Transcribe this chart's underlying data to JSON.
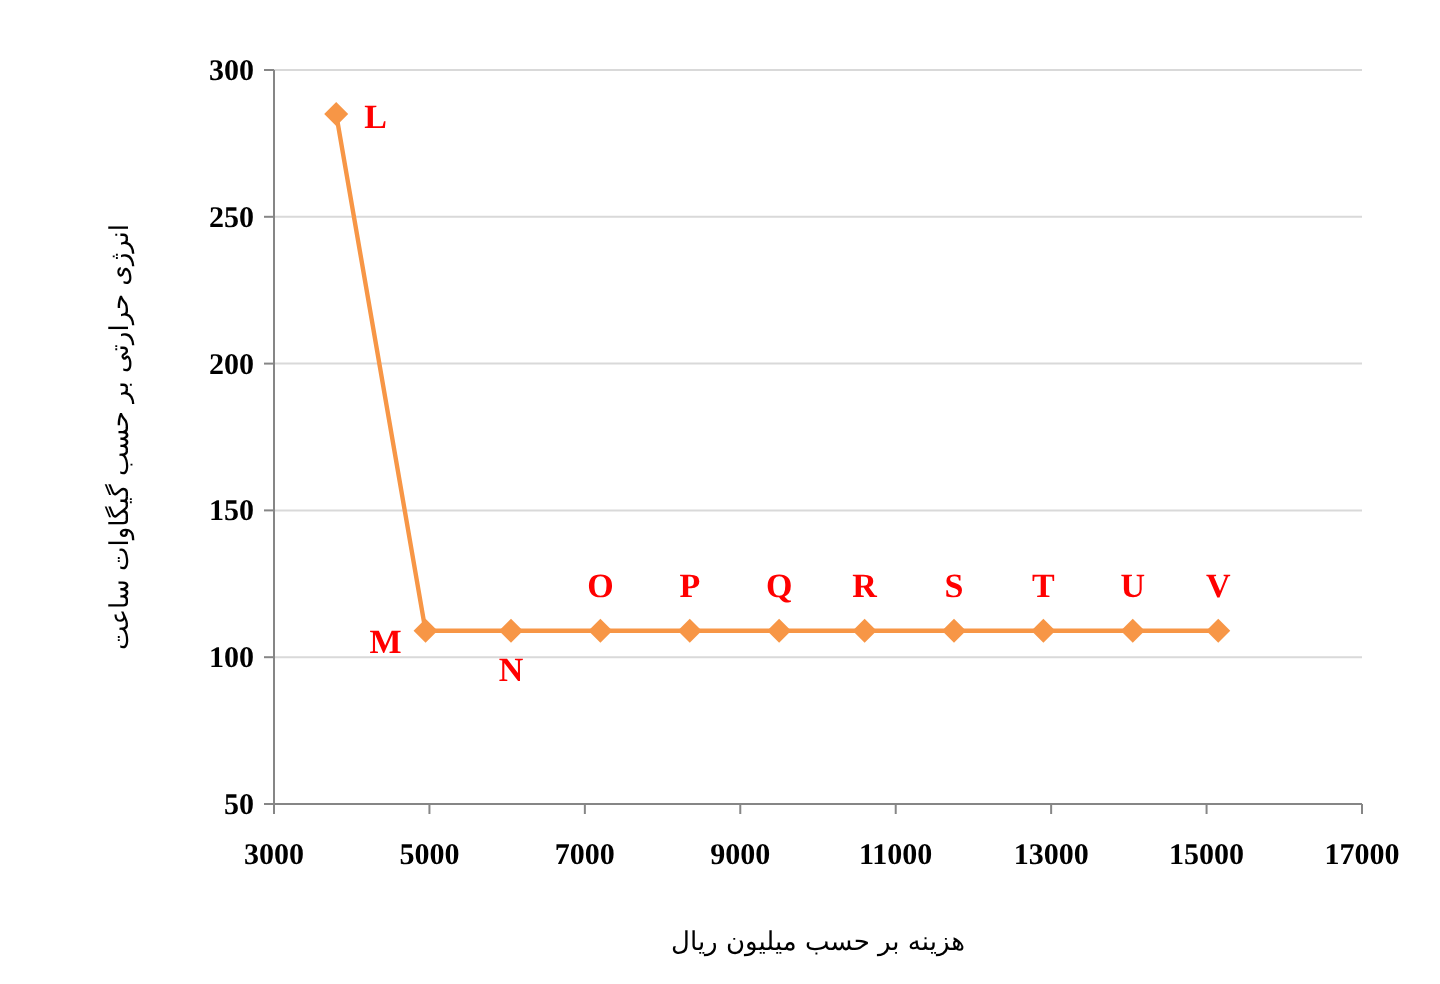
{
  "chart_data": {
    "type": "line",
    "xlabel": "هزینه بر حسب میلیون ریال",
    "ylabel": "انرژی حرارتی بر حسب گیگاوات ساعت",
    "x": [
      3800,
      4950,
      6050,
      7200,
      8350,
      9500,
      10600,
      11750,
      12900,
      14050,
      15150
    ],
    "series": [
      {
        "color": "#f79646",
        "values": [
          285,
          109,
          109,
          109,
          109,
          109,
          109,
          109,
          109,
          109,
          109
        ]
      }
    ],
    "xlim": [
      3000,
      17000
    ],
    "xticks": [
      3000,
      5000,
      7000,
      9000,
      11000,
      13000,
      15000,
      17000
    ],
    "ylim": [
      50,
      300
    ],
    "yticks": [
      50,
      100,
      150,
      200,
      250,
      300
    ],
    "grid": "y",
    "marker": "diamond",
    "line_style": "solid",
    "annotations": [
      {
        "text": "L",
        "x": 3800,
        "y": 285
      },
      {
        "text": "M",
        "x": 4950,
        "y": 109
      },
      {
        "text": "N",
        "x": 6050,
        "y": 109
      },
      {
        "text": "O",
        "x": 7200,
        "y": 109
      },
      {
        "text": "P",
        "x": 8350,
        "y": 109
      },
      {
        "text": "Q",
        "x": 9500,
        "y": 109
      },
      {
        "text": "R",
        "x": 10600,
        "y": 109
      },
      {
        "text": "S",
        "x": 11750,
        "y": 109
      },
      {
        "text": "T",
        "x": 12900,
        "y": 109
      },
      {
        "text": "U",
        "x": 14050,
        "y": 109
      },
      {
        "text": "V",
        "x": 15150,
        "y": 109
      }
    ]
  }
}
